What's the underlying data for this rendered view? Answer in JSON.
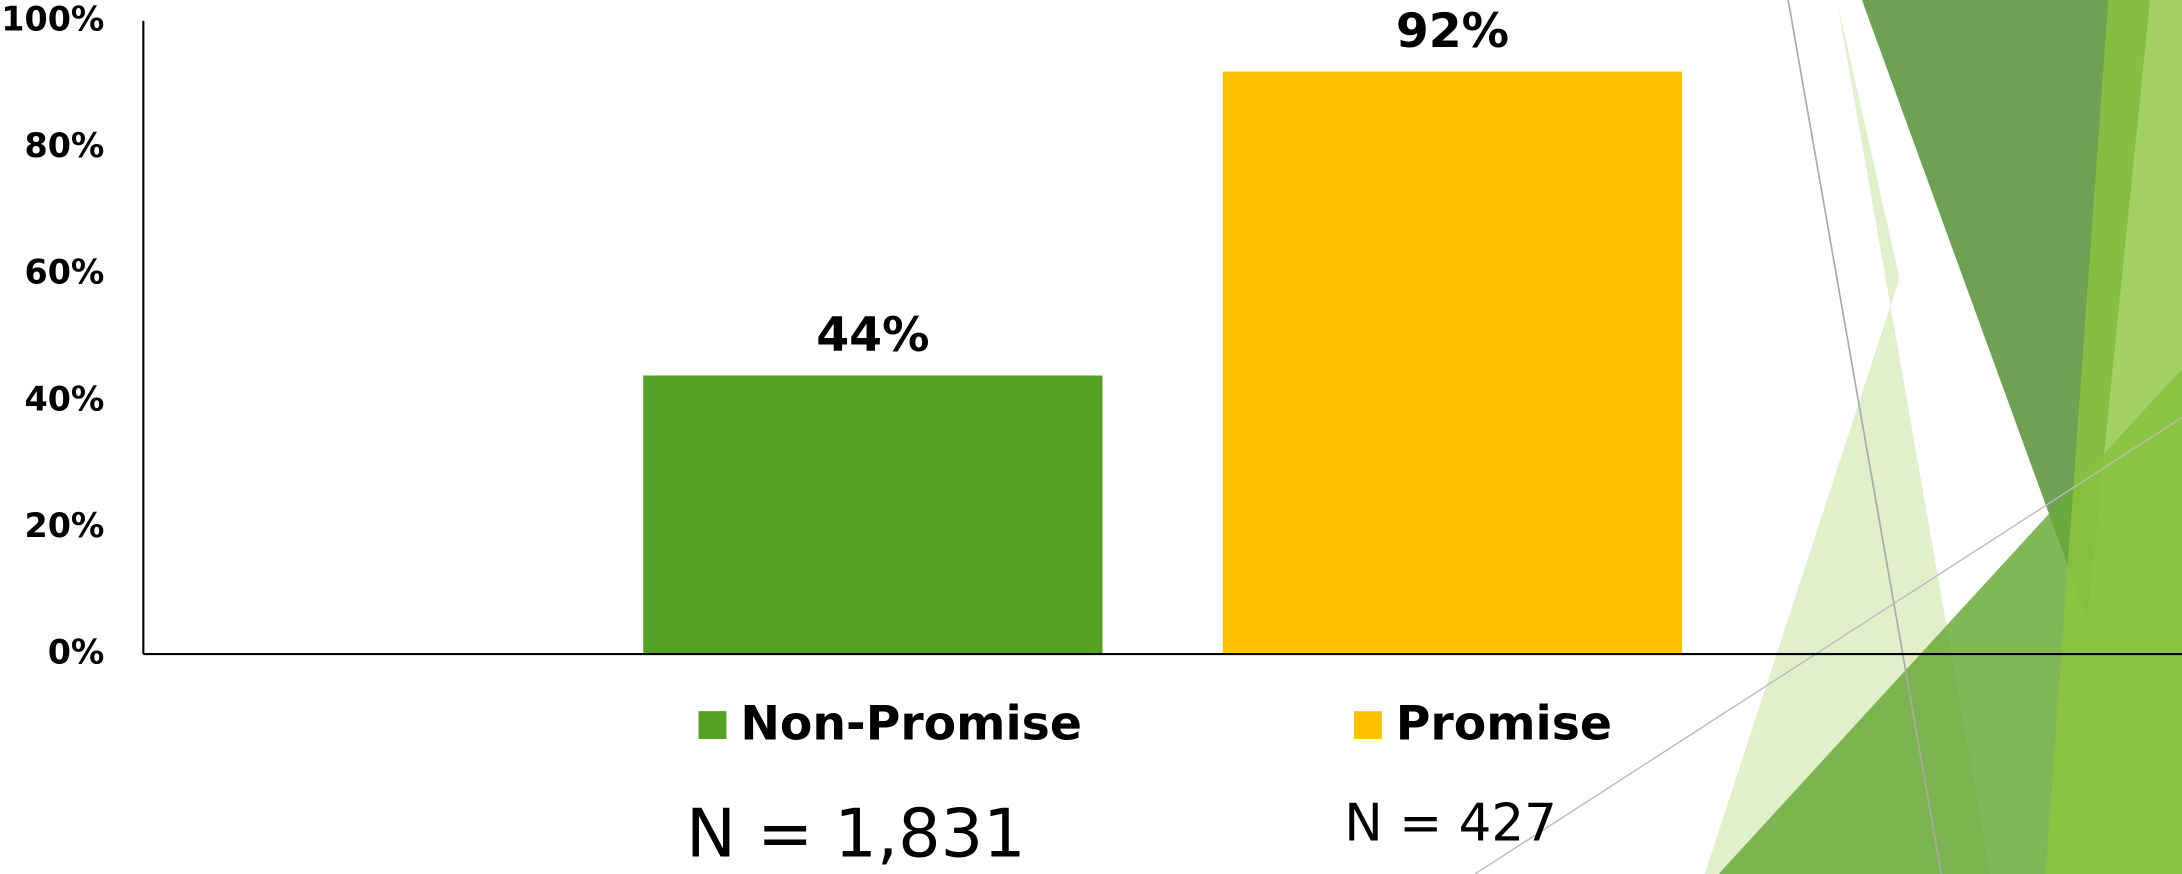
{
  "chart_data": {
    "type": "bar",
    "categories": [
      null
    ],
    "series": [
      {
        "name": "Non-Promise",
        "color": "#55a124",
        "values": [
          44
        ],
        "value_labels": [
          "44%"
        ]
      },
      {
        "name": "Promise",
        "color": "#fdc100",
        "values": [
          92
        ],
        "value_labels": [
          "92%"
        ]
      }
    ],
    "ylim": [
      0,
      100
    ],
    "yticks": [
      {
        "value": 0,
        "label": "0%"
      },
      {
        "value": 20,
        "label": "20%"
      },
      {
        "value": 40,
        "label": "40%"
      },
      {
        "value": 60,
        "label": "60%"
      },
      {
        "value": 80,
        "label": "80%"
      },
      {
        "value": 100,
        "label": "100%"
      }
    ],
    "legend": "bottom",
    "annotations": [
      "N = 1,831",
      "N = 427"
    ]
  }
}
